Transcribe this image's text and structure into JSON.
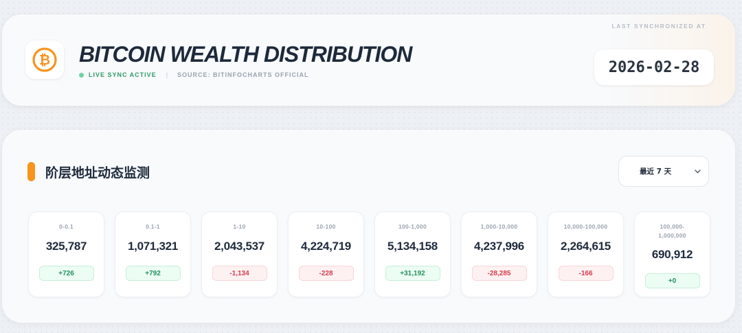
{
  "header": {
    "title": "BITCOIN WEALTH DISTRIBUTION",
    "logo_icon": "bitcoin-icon",
    "status_text": "LIVE SYNC ACTIVE",
    "separator": "|",
    "source_text": "SOURCE: BITINFOCHARTS OFFICIAL",
    "sync_label": "LAST SYNCHRONIZED AT",
    "sync_date": "2026-02-28",
    "colors": {
      "accent": "#f7941d",
      "live": "#6fd3a0"
    }
  },
  "section": {
    "title": "阶层地址动态监测",
    "range_select": {
      "selected": "最近 7 天",
      "icon": "chevron-down-icon"
    }
  },
  "tiers": [
    {
      "range": "0-0.1",
      "count": "325,787",
      "change": "+726",
      "trend": "pos"
    },
    {
      "range": "0.1-1",
      "count": "1,071,321",
      "change": "+792",
      "trend": "pos"
    },
    {
      "range": "1-10",
      "count": "2,043,537",
      "change": "-1,134",
      "trend": "neg"
    },
    {
      "range": "10-100",
      "count": "4,224,719",
      "change": "-228",
      "trend": "neg"
    },
    {
      "range": "100-1,000",
      "count": "5,134,158",
      "change": "+31,192",
      "trend": "pos"
    },
    {
      "range": "1,000-10,000",
      "count": "4,237,996",
      "change": "-28,285",
      "trend": "neg"
    },
    {
      "range": "10,000-100,000",
      "count": "2,264,615",
      "change": "-166",
      "trend": "neg"
    },
    {
      "range": "100,000-\n1,000,000",
      "count": "690,912",
      "change": "+0",
      "trend": "pos"
    }
  ]
}
